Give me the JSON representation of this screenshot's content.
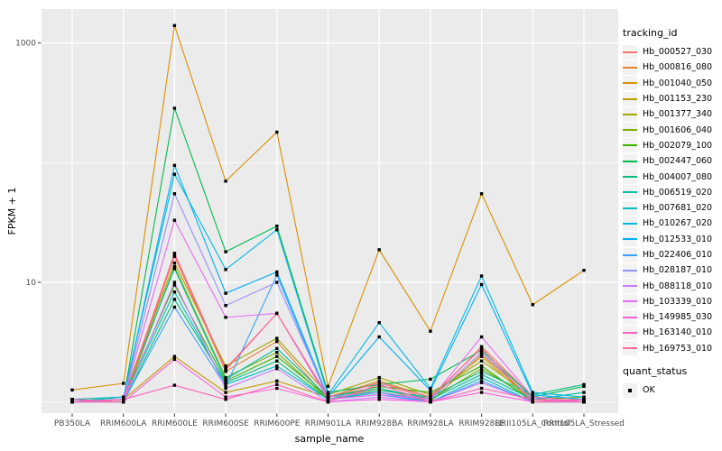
{
  "chart_data": {
    "type": "line",
    "xlabel": "sample_name",
    "ylabel": "FPKM + 1",
    "y_scale": "log10",
    "ylim": [
      1,
      1500
    ],
    "y_major_ticks": [
      {
        "value": 10,
        "label": "10"
      },
      {
        "value": 1000,
        "label": "1000"
      }
    ],
    "y_minor_ticks": [
      1,
      100
    ],
    "grid": true,
    "panel_bg": "#ebebeb",
    "grid_color": "#ffffff",
    "point_shape": "square",
    "point_color": "#000000",
    "legend_title": "tracking_id",
    "legend_position": "right",
    "legend2": {
      "title": "quant_status",
      "items": [
        {
          "label": "OK",
          "marker": "black-square"
        }
      ]
    },
    "categories": [
      "PB350LA",
      "RRIM600LA",
      "RRIM600LE",
      "RRIM600SE",
      "RRIM600PE",
      "RRIM901LA",
      "RRIM928BA",
      "RRIM928LA",
      "RRIM928LE",
      "RRII105LA_Control",
      "RRII105LA_Stressed"
    ],
    "series": [
      {
        "name": "Hb_000527_030",
        "color": "#F8766D",
        "values": [
          1.0,
          1.05,
          17.5,
          1.9,
          5.5,
          1.1,
          1.45,
          1.05,
          2.9,
          1.1,
          1.05
        ]
      },
      {
        "name": "Hb_000816_080",
        "color": "#EA8331",
        "values": [
          1.05,
          1.0,
          16.5,
          1.8,
          3.2,
          1.05,
          1.3,
          1.0,
          2.5,
          1.05,
          1.0
        ]
      },
      {
        "name": "Hb_001040_050",
        "color": "#D89000",
        "values": [
          1.26,
          1.43,
          1400,
          70.0,
          180,
          1.35,
          18.7,
          3.9,
          55.0,
          6.5,
          12.6
        ]
      },
      {
        "name": "Hb_001153_230",
        "color": "#C09B00",
        "values": [
          1.0,
          1.05,
          2.4,
          1.2,
          1.5,
          1.1,
          1.5,
          1.1,
          2.4,
          1.0,
          1.05
        ]
      },
      {
        "name": "Hb_001377_340",
        "color": "#A3A500",
        "values": [
          1.05,
          1.1,
          14.5,
          2.0,
          3.4,
          1.15,
          1.6,
          1.15,
          2.2,
          1.1,
          1.0
        ]
      },
      {
        "name": "Hb_001606_040",
        "color": "#7CAE00",
        "values": [
          1.0,
          1.0,
          13.5,
          1.6,
          2.6,
          1.05,
          1.2,
          1.05,
          1.9,
          1.05,
          1.1
        ]
      },
      {
        "name": "Hb_002079_100",
        "color": "#39B600",
        "values": [
          1.0,
          1.05,
          9.5,
          1.5,
          2.4,
          1.1,
          1.35,
          1.2,
          2.0,
          1.0,
          1.0
        ]
      },
      {
        "name": "Hb_002447_060",
        "color": "#00BB4E",
        "values": [
          1.0,
          1.05,
          285,
          18.0,
          29.5,
          1.2,
          1.4,
          1.55,
          2.7,
          1.1,
          1.35
        ]
      },
      {
        "name": "Hb_004007_080",
        "color": "#00BF7D",
        "values": [
          1.05,
          1.0,
          7.2,
          1.45,
          2.2,
          1.05,
          1.25,
          1.1,
          1.8,
          1.15,
          1.4
        ]
      },
      {
        "name": "Hb_006519_020",
        "color": "#00C1A3",
        "values": [
          1.0,
          1.1,
          13.0,
          1.55,
          2.8,
          1.1,
          1.3,
          1.05,
          1.7,
          1.05,
          1.2
        ]
      },
      {
        "name": "Hb_007681_020",
        "color": "#00BFC4",
        "values": [
          1.0,
          1.05,
          8.3,
          1.4,
          2.0,
          1.05,
          1.2,
          1.0,
          1.6,
          1.0,
          1.05
        ]
      },
      {
        "name": "Hb_010267_020",
        "color": "#00BAE0",
        "values": [
          1.05,
          1.1,
          80.0,
          12.8,
          27.5,
          1.15,
          4.6,
          1.3,
          11.3,
          1.2,
          1.1
        ]
      },
      {
        "name": "Hb_012533_010",
        "color": "#00B0F6",
        "values": [
          1.0,
          1.05,
          95.0,
          8.1,
          12.2,
          1.1,
          3.5,
          1.25,
          9.6,
          1.15,
          1.05
        ]
      },
      {
        "name": "Hb_022406_010",
        "color": "#35A2FF",
        "values": [
          1.0,
          1.0,
          6.2,
          1.35,
          11.5,
          1.05,
          1.15,
          1.0,
          1.5,
          1.0,
          1.0
        ]
      },
      {
        "name": "Hb_028187_010",
        "color": "#9590FF",
        "values": [
          1.0,
          1.05,
          55.0,
          6.4,
          10.0,
          1.1,
          1.2,
          1.05,
          2.6,
          1.05,
          1.0
        ]
      },
      {
        "name": "Hb_088118_010",
        "color": "#C77CFF",
        "values": [
          1.0,
          1.0,
          10.0,
          1.3,
          1.9,
          1.0,
          1.1,
          1.0,
          1.45,
          1.0,
          1.05
        ]
      },
      {
        "name": "Hb_103339_010",
        "color": "#E76BF3",
        "values": [
          1.0,
          1.05,
          33.0,
          5.1,
          5.5,
          1.05,
          1.15,
          1.05,
          3.5,
          1.1,
          1.0
        ]
      },
      {
        "name": "Hb_149985_030",
        "color": "#FA62DB",
        "values": [
          1.0,
          1.0,
          2.27,
          1.1,
          1.3,
          1.0,
          1.05,
          1.0,
          1.2,
          1.0,
          1.0
        ]
      },
      {
        "name": "Hb_163140_010",
        "color": "#FF62BC",
        "values": [
          1.0,
          1.05,
          1.38,
          1.05,
          1.4,
          1.0,
          1.4,
          1.0,
          1.3,
          1.05,
          1.0
        ]
      },
      {
        "name": "Hb_169753_010",
        "color": "#FF6A98",
        "values": [
          1.05,
          1.0,
          17.0,
          1.85,
          5.5,
          1.1,
          1.45,
          1.1,
          2.8,
          1.0,
          1.05
        ]
      }
    ]
  }
}
